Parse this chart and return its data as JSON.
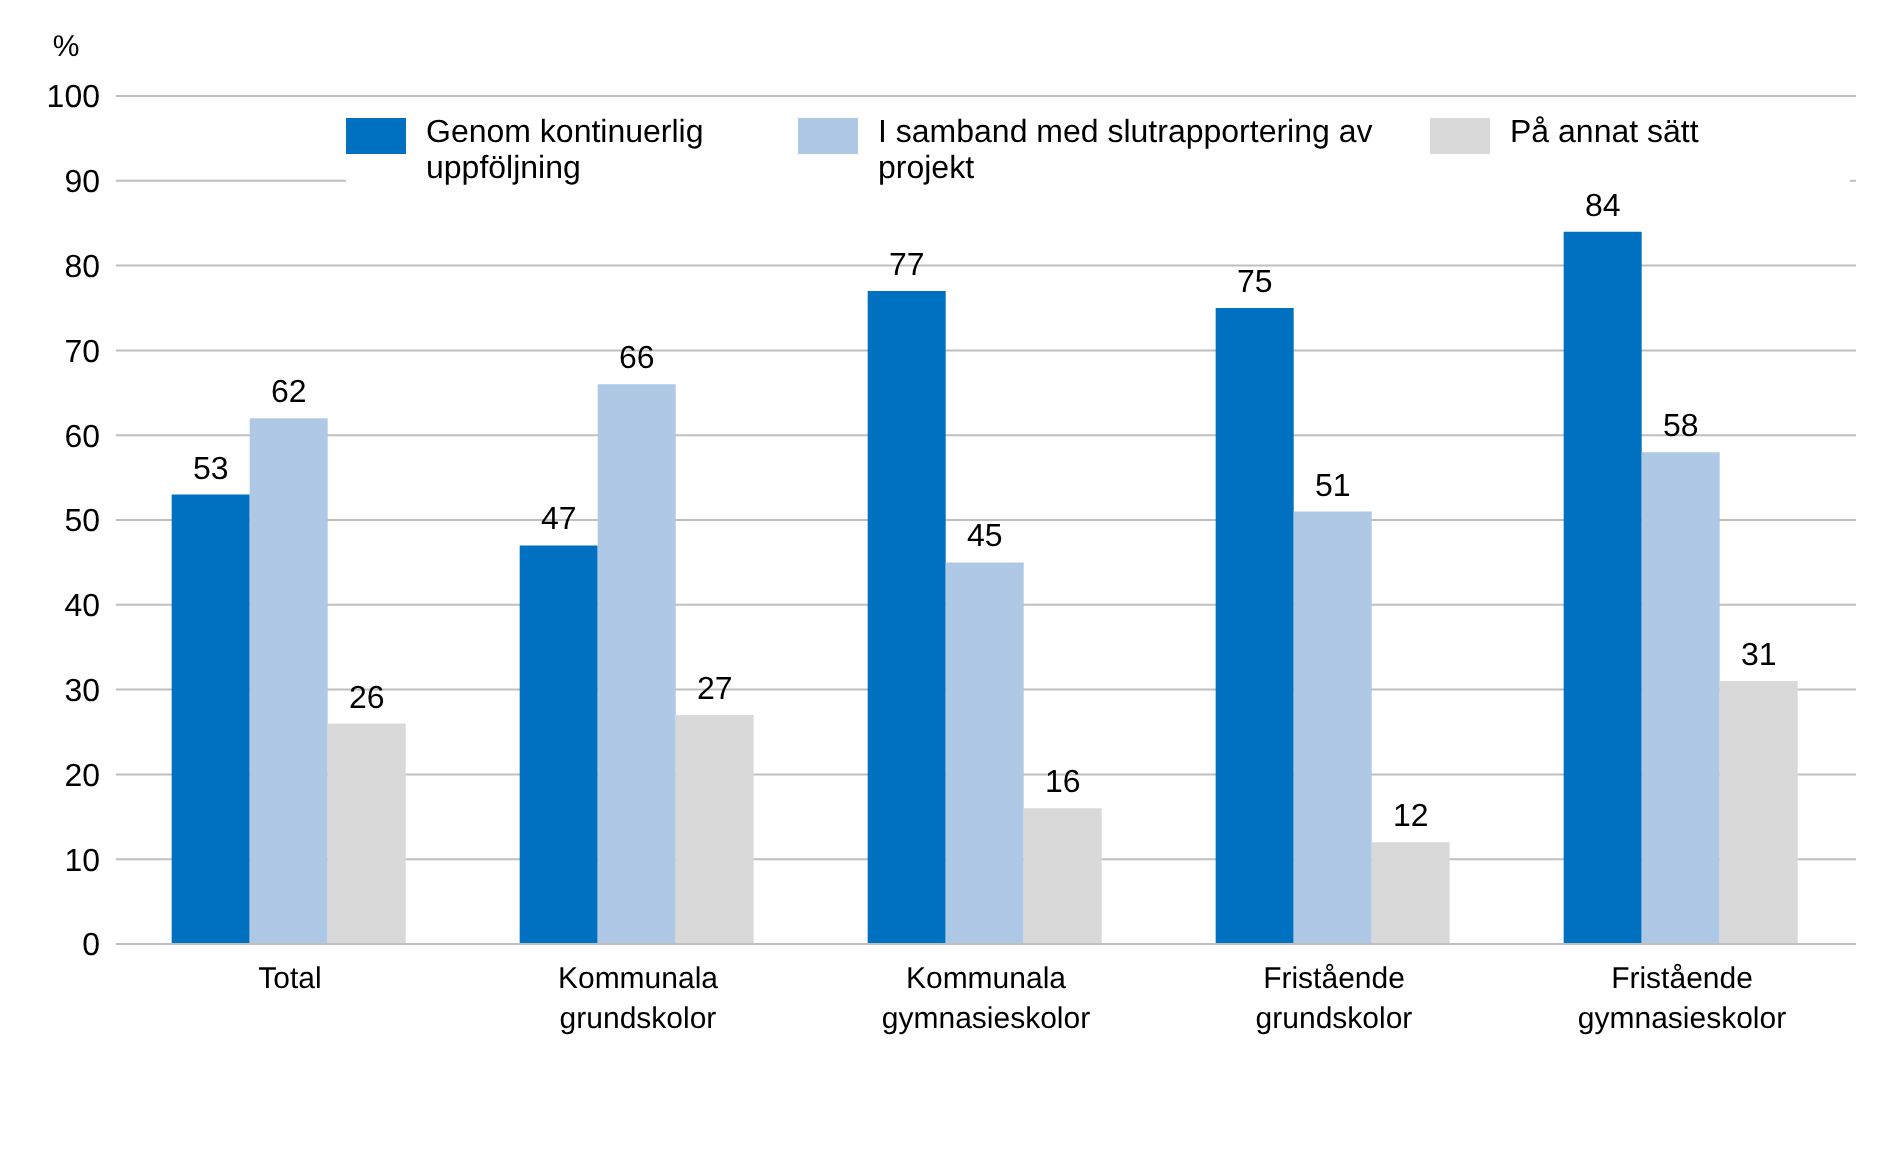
{
  "chart_data": {
    "type": "bar",
    "ylabel": "%",
    "categories": [
      "Total",
      "Kommunala grundskolor",
      "Kommunala gymnasieskolor",
      "Fristående grundskolor",
      "Fristående gymnasieskolor"
    ],
    "series": [
      {
        "name": "Genom kontinuerlig uppföljning",
        "color": "#0070c0",
        "values": [
          53,
          47,
          77,
          75,
          84
        ]
      },
      {
        "name": "I samband med slutrapportering av projekt",
        "color": "#aec8e6",
        "values": [
          62,
          66,
          45,
          51,
          58
        ]
      },
      {
        "name": "På annat sätt",
        "color": "#d9d9d9",
        "values": [
          26,
          27,
          16,
          12,
          31
        ]
      }
    ],
    "ylim": [
      0,
      100
    ],
    "yticks": [
      0,
      10,
      20,
      30,
      40,
      50,
      60,
      70,
      80,
      90,
      100
    ],
    "grid": "y",
    "legend": "top",
    "data_labels": true
  }
}
